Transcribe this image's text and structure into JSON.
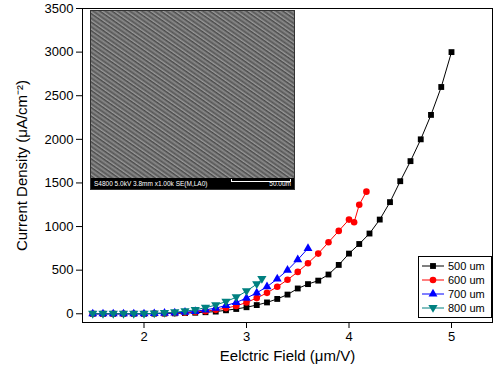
{
  "chart_data": {
    "type": "line",
    "x_label": "Eelctric Field (μm/V)",
    "y_label": "Current Density (μA/cm⁻²)",
    "xlim": [
      1.4,
      5.4
    ],
    "ylim": [
      -100,
      3500
    ],
    "xticks": [
      2,
      3,
      4,
      5
    ],
    "yticks": [
      0,
      500,
      1000,
      1500,
      2000,
      2500,
      3000,
      3500
    ],
    "grid": false,
    "legend": "lower right",
    "annotations": [
      "S4800 5.0kV 3.8mm x1.00k SE(M,LA0)",
      "50.0um"
    ],
    "series": [
      {
        "name": "500 um",
        "color": "#000000",
        "marker": "square",
        "x": [
          1.5,
          1.6,
          1.7,
          1.8,
          1.9,
          2.0,
          2.1,
          2.2,
          2.3,
          2.4,
          2.5,
          2.6,
          2.7,
          2.8,
          2.9,
          3.0,
          3.1,
          3.2,
          3.3,
          3.4,
          3.5,
          3.6,
          3.7,
          3.8,
          3.9,
          4.0,
          4.1,
          4.2,
          4.3,
          4.4,
          4.5,
          4.6,
          4.7,
          4.8,
          4.9,
          5.0
        ],
        "values": [
          0,
          0,
          0,
          0,
          0,
          0,
          2,
          3,
          5,
          8,
          12,
          18,
          25,
          40,
          55,
          75,
          100,
          130,
          170,
          220,
          290,
          340,
          380,
          450,
          560,
          690,
          800,
          920,
          1080,
          1280,
          1520,
          1750,
          2000,
          2280,
          2600,
          3000
        ]
      },
      {
        "name": "600 um",
        "color": "#ff0000",
        "marker": "circle",
        "x": [
          1.5,
          1.6,
          1.7,
          1.8,
          1.9,
          2.0,
          2.1,
          2.2,
          2.3,
          2.4,
          2.5,
          2.6,
          2.7,
          2.8,
          2.9,
          3.0,
          3.1,
          3.2,
          3.3,
          3.4,
          3.5,
          3.6,
          3.7,
          3.8,
          3.9,
          4.0,
          4.05,
          4.1,
          4.17
        ],
        "values": [
          0,
          0,
          0,
          0,
          0,
          0,
          2,
          4,
          8,
          12,
          20,
          30,
          45,
          65,
          90,
          130,
          180,
          240,
          310,
          390,
          480,
          580,
          690,
          820,
          950,
          1080,
          1050,
          1250,
          1400
        ]
      },
      {
        "name": "700 um",
        "color": "#0000ff",
        "marker": "triangle-up",
        "x": [
          1.5,
          1.6,
          1.7,
          1.8,
          1.9,
          2.0,
          2.1,
          2.2,
          2.3,
          2.4,
          2.5,
          2.6,
          2.7,
          2.8,
          2.9,
          3.0,
          3.1,
          3.2,
          3.3,
          3.4,
          3.5,
          3.6
        ],
        "values": [
          0,
          0,
          0,
          0,
          0,
          0,
          3,
          6,
          10,
          18,
          28,
          45,
          65,
          95,
          130,
          180,
          240,
          310,
          400,
          500,
          620,
          750
        ]
      },
      {
        "name": "800 um",
        "color": "#008080",
        "marker": "triangle-down",
        "x": [
          1.5,
          1.6,
          1.7,
          1.8,
          1.9,
          2.0,
          2.1,
          2.2,
          2.3,
          2.4,
          2.5,
          2.6,
          2.7,
          2.8,
          2.9,
          3.0,
          3.1,
          3.15
        ],
        "values": [
          0,
          0,
          0,
          0,
          0,
          0,
          5,
          10,
          18,
          30,
          45,
          70,
          100,
          140,
          190,
          260,
          340,
          400
        ]
      }
    ]
  }
}
